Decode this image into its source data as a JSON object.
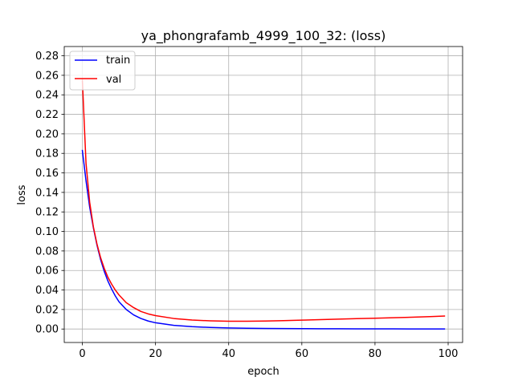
{
  "chart_data": {
    "type": "line",
    "title": "ya_phongrafamb_4999_100_32: (loss)",
    "xlabel": "epoch",
    "ylabel": "loss",
    "xlim": [
      -4.95,
      103.95
    ],
    "ylim": [
      -0.0138,
      0.2895
    ],
    "xticks": [
      0,
      20,
      40,
      60,
      80,
      100
    ],
    "yticks": [
      0.0,
      0.02,
      0.04,
      0.06,
      0.08,
      0.1,
      0.12,
      0.14,
      0.16,
      0.18,
      0.2,
      0.22,
      0.24,
      0.26,
      0.28
    ],
    "grid": true,
    "legend_position": "top-left",
    "x": [
      0,
      1,
      2,
      3,
      4,
      5,
      6,
      7,
      8,
      9,
      10,
      12,
      14,
      16,
      18,
      20,
      25,
      30,
      35,
      40,
      45,
      50,
      55,
      60,
      65,
      70,
      75,
      80,
      85,
      90,
      95,
      99
    ],
    "series": [
      {
        "name": "train",
        "color": "#0000ff",
        "values": [
          0.183,
          0.152,
          0.125,
          0.104,
          0.086,
          0.071,
          0.059,
          0.049,
          0.041,
          0.034,
          0.028,
          0.02,
          0.0145,
          0.0108,
          0.0082,
          0.0064,
          0.0038,
          0.0024,
          0.0016,
          0.0011,
          0.0008,
          0.0006,
          0.0005,
          0.0004,
          0.0003,
          0.00025,
          0.0002,
          0.00015,
          0.00012,
          0.0001,
          0.0001,
          0.0001
        ]
      },
      {
        "name": "val",
        "color": "#ff0000",
        "values": [
          0.255,
          0.17,
          0.13,
          0.105,
          0.087,
          0.073,
          0.062,
          0.053,
          0.046,
          0.04,
          0.035,
          0.027,
          0.022,
          0.018,
          0.0155,
          0.0137,
          0.0108,
          0.0092,
          0.0084,
          0.008,
          0.008,
          0.0082,
          0.0086,
          0.0091,
          0.0096,
          0.0101,
          0.0106,
          0.0111,
          0.0116,
          0.0121,
          0.0127,
          0.0133
        ]
      }
    ]
  }
}
